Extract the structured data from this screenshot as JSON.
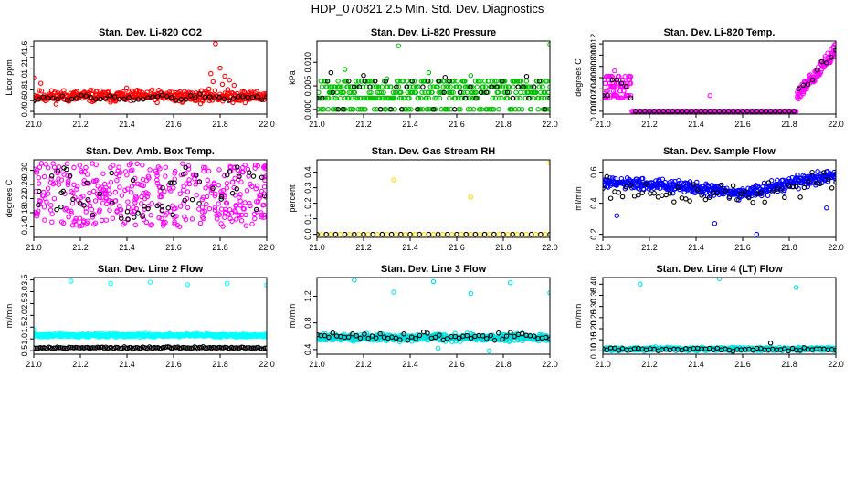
{
  "title": "HDP_070821  2.5 Min. Std. Dev. Diagnostics",
  "chart_data": [
    {
      "type": "scatter",
      "title": "Stan. Dev. Li-820 CO2",
      "xlabel": "",
      "ylabel": "Licor ppm",
      "xlim": [
        21.0,
        22.0
      ],
      "ylim": [
        0.35,
        1.7
      ],
      "xticks": [
        21.0,
        21.2,
        21.4,
        21.6,
        21.8,
        22.0
      ],
      "yticks": [
        0.4,
        0.6,
        0.8,
        1.0,
        1.2,
        1.4,
        1.6
      ],
      "ytick_labels": [
        "0.4",
        "0.6",
        "0.8",
        "1.0",
        "1.2",
        "1.4",
        "1.6"
      ],
      "series": [
        {
          "name": "primary",
          "color": "#ff0000",
          "model": {
            "type": "noise",
            "center": 0.68,
            "spread": 0.1,
            "n": 420,
            "seed": 11
          },
          "extra": [
            [
              21.78,
              1.65
            ],
            [
              21.8,
              1.2
            ],
            [
              21.82,
              1.05
            ],
            [
              21.77,
              0.95
            ],
            [
              21.84,
              0.98
            ],
            [
              21.76,
              1.1
            ],
            [
              21.81,
              0.9
            ],
            [
              21.0,
              1.02
            ],
            [
              21.03,
              0.92
            ],
            [
              21.86,
              0.88
            ]
          ]
        },
        {
          "name": "secondary",
          "color": "#000000",
          "model": {
            "type": "noise",
            "center": 0.65,
            "spread": 0.06,
            "n": 50,
            "seed": 12
          }
        }
      ]
    },
    {
      "type": "scatter",
      "title": "Stan. Dev. Li-820 Pressure",
      "xlabel": "",
      "ylabel": "kPa",
      "xlim": [
        21.0,
        22.0
      ],
      "ylim": [
        -0.001,
        0.0145
      ],
      "xticks": [
        21.0,
        21.2,
        21.4,
        21.6,
        21.8,
        22.0
      ],
      "yticks": [
        0.0,
        0.005,
        0.01
      ],
      "ytick_labels": [
        "0.000",
        "0.005",
        "0.010"
      ],
      "series": [
        {
          "name": "primary",
          "color": "#00c000",
          "model": {
            "type": "discrete",
            "levels": [
              0.0,
              0.0024,
              0.0036,
              0.0048,
              0.006
            ],
            "n": 420,
            "seed": 21
          },
          "extra": [
            [
              21.35,
              0.0135
            ],
            [
              22.0,
              0.0138
            ],
            [
              21.12,
              0.0085
            ],
            [
              21.48,
              0.0078
            ],
            [
              21.66,
              0.0072
            ],
            [
              21.3,
              0.0065
            ]
          ]
        },
        {
          "name": "secondary",
          "color": "#000000",
          "model": {
            "type": "discrete",
            "levels": [
              0.0,
              0.0024,
              0.0036,
              0.0048,
              0.006
            ],
            "n": 45,
            "seed": 22
          },
          "extra": [
            [
              21.06,
              0.0078
            ],
            [
              21.2,
              0.0072
            ],
            [
              21.55,
              0.0068
            ],
            [
              21.9,
              0.007
            ]
          ]
        }
      ]
    },
    {
      "type": "scatter",
      "title": "Stan. Dev. Li-820 Temp.",
      "xlabel": "",
      "ylabel": "degrees C",
      "xlim": [
        21.0,
        22.0
      ],
      "ylim": [
        -0.0005,
        0.0125
      ],
      "xticks": [
        21.0,
        21.2,
        21.4,
        21.6,
        21.8,
        22.0
      ],
      "yticks": [
        0.0,
        0.002,
        0.004,
        0.006,
        0.008,
        0.01,
        0.012
      ],
      "ytick_labels": [
        "0.000",
        "0.002",
        "0.004",
        "0.006",
        "0.008",
        "0.010",
        "0.012"
      ],
      "series": [
        {
          "name": "primary",
          "color": "#ff00ff",
          "model": {
            "type": "temp",
            "seed": 31
          }
        },
        {
          "name": "secondary",
          "color": "#000000",
          "model": {
            "type": "temp",
            "seed": 32,
            "sparse": true
          }
        }
      ]
    },
    {
      "type": "scatter",
      "title": "Stan. Dev. Amb. Box Temp.",
      "xlabel": "",
      "ylabel": "degrees C",
      "xlim": [
        21.0,
        22.0
      ],
      "ylim": [
        0.11,
        0.33
      ],
      "xticks": [
        21.0,
        21.2,
        21.4,
        21.6,
        21.8,
        22.0
      ],
      "yticks": [
        0.14,
        0.18,
        0.22,
        0.26,
        0.3
      ],
      "ytick_labels": [
        "0.14",
        "0.18",
        "0.22",
        "0.26",
        "0.30"
      ],
      "series": [
        {
          "name": "primary",
          "color": "#ff00ff",
          "model": {
            "type": "uniform",
            "lo": 0.14,
            "hi": 0.32,
            "n": 420,
            "seed": 41
          }
        },
        {
          "name": "secondary",
          "color": "#000000",
          "model": {
            "type": "uniform",
            "lo": 0.16,
            "hi": 0.31,
            "n": 60,
            "seed": 42
          }
        }
      ]
    },
    {
      "type": "scatter",
      "title": "Stan. Dev. Gas Stream RH",
      "xlabel": "",
      "ylabel": "percent",
      "xlim": [
        21.0,
        22.0
      ],
      "ylim": [
        -0.02,
        0.48
      ],
      "xticks": [
        21.0,
        21.2,
        21.4,
        21.6,
        21.8,
        22.0
      ],
      "yticks": [
        0.0,
        0.1,
        0.2,
        0.3,
        0.4
      ],
      "ytick_labels": [
        "0.0",
        "0.1",
        "0.2",
        "0.3",
        "0.4"
      ],
      "series": [
        {
          "name": "primary",
          "color": "#ffd700",
          "model": {
            "type": "flat",
            "y": 0.0,
            "step": 0.02,
            "seed": 51
          },
          "extra": [
            [
              21.33,
              0.35
            ],
            [
              21.66,
              0.24
            ],
            [
              22.0,
              0.46
            ]
          ]
        },
        {
          "name": "secondary",
          "color": "#000000",
          "model": {
            "type": "flat",
            "y": 0.0,
            "step": 0.04,
            "seed": 52
          }
        }
      ]
    },
    {
      "type": "scatter",
      "title": "Stan. Dev. Sample Flow",
      "xlabel": "",
      "ylabel": "ml/min",
      "xlim": [
        21.0,
        22.0
      ],
      "ylim": [
        0.18,
        0.68
      ],
      "xticks": [
        21.0,
        21.2,
        21.4,
        21.6,
        21.8,
        22.0
      ],
      "yticks": [
        0.2,
        0.4,
        0.6
      ],
      "ytick_labels": [
        "0.2",
        "0.4",
        "0.6"
      ],
      "series": [
        {
          "name": "primary",
          "color": "#0000ff",
          "model": {
            "type": "trend",
            "pts": [
              [
                21.0,
                0.53
              ],
              [
                21.2,
                0.52
              ],
              [
                21.4,
                0.5
              ],
              [
                21.6,
                0.46
              ],
              [
                21.8,
                0.53
              ],
              [
                22.0,
                0.58
              ]
            ],
            "spread": 0.04,
            "n": 450,
            "seed": 61
          },
          "extra": [
            [
              21.06,
              0.32
            ],
            [
              21.48,
              0.27
            ],
            [
              21.66,
              0.2
            ],
            [
              21.96,
              0.37
            ]
          ]
        },
        {
          "name": "secondary",
          "color": "#000000",
          "model": {
            "type": "trend",
            "pts": [
              [
                21.0,
                0.5
              ],
              [
                21.2,
                0.46
              ],
              [
                21.4,
                0.48
              ],
              [
                21.6,
                0.44
              ],
              [
                21.8,
                0.5
              ],
              [
                22.0,
                0.56
              ]
            ],
            "spread": 0.07,
            "n": 60,
            "seed": 62
          }
        }
      ]
    },
    {
      "type": "scatter",
      "title": "Stan. Dev. Line 2 Flow",
      "xlabel": "",
      "ylabel": "ml/min",
      "xlim": [
        21.0,
        22.0
      ],
      "ylim": [
        0.35,
        3.6
      ],
      "xticks": [
        21.0,
        21.2,
        21.4,
        21.6,
        21.8,
        22.0
      ],
      "yticks": [
        0.5,
        1.0,
        1.5,
        2.0,
        2.5,
        3.0,
        3.5
      ],
      "ytick_labels": [
        "0.5",
        "1.0",
        "1.5",
        "2.0",
        "2.5",
        "3.0",
        "3.5"
      ],
      "series": [
        {
          "name": "primary",
          "color": "#00ffff",
          "model": {
            "type": "noise",
            "center": 1.15,
            "spread": 0.06,
            "n": 480,
            "seed": 71
          },
          "extra": [
            [
              21.16,
              3.45
            ],
            [
              21.33,
              3.35
            ],
            [
              21.5,
              3.4
            ],
            [
              21.66,
              3.3
            ],
            [
              21.83,
              3.35
            ],
            [
              22.0,
              3.28
            ],
            [
              21.0,
              1.4
            ]
          ]
        },
        {
          "name": "secondary",
          "color": "#000000",
          "model": {
            "type": "noise",
            "center": 0.62,
            "spread": 0.04,
            "n": 140,
            "seed": 72
          }
        }
      ]
    },
    {
      "type": "scatter",
      "title": "Stan. Dev. Line 3 Flow",
      "xlabel": "",
      "ylabel": "ml/min",
      "xlim": [
        21.0,
        22.0
      ],
      "ylim": [
        0.33,
        1.48
      ],
      "xticks": [
        21.0,
        21.2,
        21.4,
        21.6,
        21.8,
        22.0
      ],
      "yticks": [
        0.4,
        0.8,
        1.2
      ],
      "ytick_labels": [
        "0.4",
        "0.8",
        "1.2"
      ],
      "series": [
        {
          "name": "primary",
          "color": "#00e0e0",
          "model": {
            "type": "noise",
            "center": 0.58,
            "spread": 0.05,
            "n": 480,
            "seed": 81
          },
          "extra": [
            [
              21.16,
              1.44
            ],
            [
              21.33,
              1.26
            ],
            [
              21.5,
              1.42
            ],
            [
              21.66,
              1.24
            ],
            [
              21.83,
              1.4
            ],
            [
              22.0,
              1.25
            ],
            [
              21.74,
              0.38
            ],
            [
              21.52,
              0.42
            ]
          ]
        },
        {
          "name": "secondary",
          "color": "#000000",
          "model": {
            "type": "noise",
            "center": 0.6,
            "spread": 0.05,
            "n": 60,
            "seed": 82
          }
        }
      ]
    },
    {
      "type": "scatter",
      "title": "Stan. Dev. Line 4 (LT) Flow",
      "xlabel": "",
      "ylabel": "ml/min",
      "xlim": [
        21.0,
        22.0
      ],
      "ylim": [
        0.085,
        0.43
      ],
      "xticks": [
        21.0,
        21.2,
        21.4,
        21.6,
        21.8,
        22.0
      ],
      "yticks": [
        0.1,
        0.15,
        0.2,
        0.25,
        0.3,
        0.35,
        0.4
      ],
      "ytick_labels": [
        "0.10",
        "0.15",
        "0.20",
        "0.25",
        "0.30",
        "0.35",
        "0.40"
      ],
      "series": [
        {
          "name": "primary",
          "color": "#00e0e0",
          "model": {
            "type": "noise",
            "center": 0.108,
            "spread": 0.007,
            "n": 480,
            "seed": 91
          },
          "extra": [
            [
              21.16,
              0.4
            ],
            [
              21.5,
              0.425
            ],
            [
              21.83,
              0.385
            ]
          ]
        },
        {
          "name": "secondary",
          "color": "#000000",
          "model": {
            "type": "noise",
            "center": 0.107,
            "spread": 0.008,
            "n": 60,
            "seed": 92
          },
          "extra": [
            [
              21.72,
              0.135
            ]
          ]
        }
      ]
    }
  ]
}
